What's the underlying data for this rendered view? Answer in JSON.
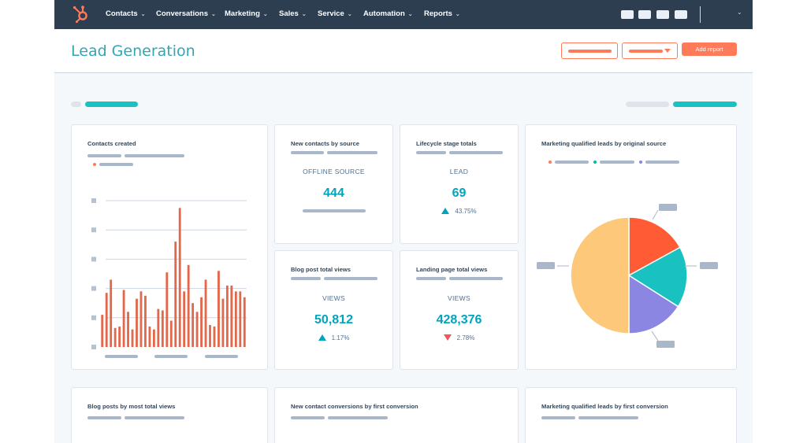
{
  "nav": {
    "items": [
      {
        "label": "Contacts"
      },
      {
        "label": "Conversations"
      },
      {
        "label": "Marketing"
      },
      {
        "label": "Sales"
      },
      {
        "label": "Service"
      },
      {
        "label": "Automation"
      },
      {
        "label": "Reports"
      }
    ]
  },
  "header": {
    "title": "Lead Generation",
    "add_report_label": "Add report"
  },
  "colors": {
    "accent": "#00a4bd",
    "primary": "#ff7a59",
    "nav_bg": "#2d3e50",
    "negative": "#f2545b"
  },
  "cards": {
    "contacts_created": {
      "title": "Contacts created"
    },
    "new_contacts_by_source": {
      "title": "New contacts by source",
      "label": "OFFLINE SOURCE",
      "value": "444"
    },
    "lifecycle_stage_totals": {
      "title": "Lifecycle stage totals",
      "label": "LEAD",
      "value": "69",
      "delta": "43.75%",
      "direction": "up"
    },
    "blog_post_total_views": {
      "title": "Blog post total views",
      "label": "VIEWS",
      "value": "50,812",
      "delta": "1.17%",
      "direction": "up"
    },
    "landing_page_total_views": {
      "title": "Landing page total views",
      "label": "VIEWS",
      "value": "428,376",
      "delta": "2.78%",
      "direction": "down"
    },
    "mql_by_original_source": {
      "title": "Marketing qualified leads by original source"
    },
    "blog_posts_by_views": {
      "title": "Blog posts by most total views"
    },
    "new_contact_conversions": {
      "title": "New contact conversions by first conversion"
    },
    "mql_by_first_conversion": {
      "title": "Marketing qualified leads by first conversion"
    }
  },
  "chart_data": [
    {
      "type": "bar",
      "chart": "contacts-created",
      "values": [
        22,
        37,
        46,
        13,
        14,
        39,
        24,
        12,
        33,
        38,
        35,
        14,
        12,
        26,
        25,
        51,
        18,
        72,
        95,
        38,
        56,
        30,
        24,
        34,
        46,
        15,
        14,
        52,
        33,
        42,
        42,
        38,
        38,
        34
      ],
      "ylim": [
        0,
        100
      ],
      "color": "#e2684c",
      "grid": true
    },
    {
      "type": "pie",
      "chart": "mql-by-original-source",
      "slices": [
        {
          "value": 17,
          "color": "#ff5c35"
        },
        {
          "value": 17,
          "color": "#1ac1c1"
        },
        {
          "value": 16,
          "color": "#8a86e2"
        },
        {
          "value": 50,
          "color": "#fdc87a"
        }
      ]
    }
  ]
}
